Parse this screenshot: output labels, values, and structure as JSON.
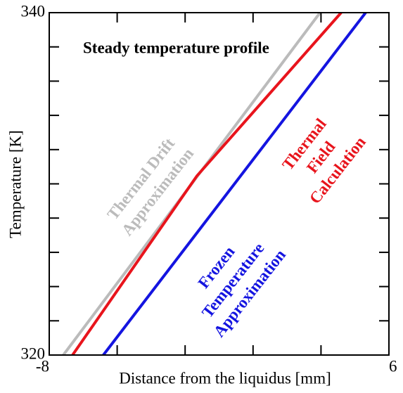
{
  "chart_data": {
    "type": "line",
    "title_lines": [
      "Steady temperature profile"
    ],
    "xlabel": "Distance from the liquidus [mm]",
    "ylabel": "Temperature [K]",
    "xlim": [
      -8,
      6
    ],
    "ylim": [
      320,
      340
    ],
    "xticks": [
      -8,
      6
    ],
    "yticks": [
      320,
      340
    ],
    "x_minor_ticks": [
      -5.2,
      -2.4,
      0.4,
      3.2
    ],
    "y_minor_ticks": [
      322,
      324,
      326,
      328,
      330,
      332,
      334,
      336,
      338
    ],
    "series": [
      {
        "color": "#bbbbbb",
        "x": [
          -7.42,
          3.16
        ],
        "values": [
          320,
          340
        ],
        "annotation": [
          "Thermal Drift",
          "Approximation"
        ]
      },
      {
        "color": "#e8141c",
        "x": [
          -7.04,
          -1.91,
          4.03
        ],
        "values": [
          320,
          330.47,
          340
        ],
        "annotation": [
          "Thermal",
          "Field",
          "Calculation"
        ]
      },
      {
        "color": "#1414e0",
        "x": [
          -5.77,
          5.04
        ],
        "values": [
          320,
          340
        ],
        "annotation": [
          "Frozen",
          "Temperature",
          "Approximation"
        ]
      }
    ]
  }
}
